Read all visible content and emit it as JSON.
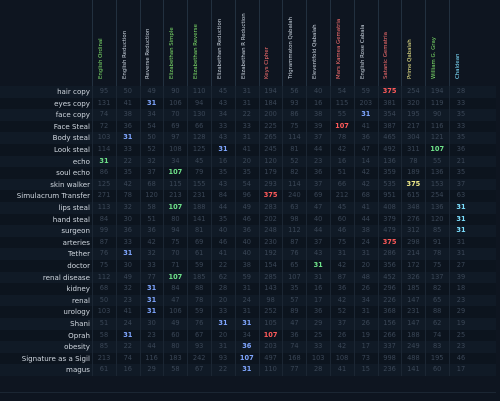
{
  "columns": [
    {
      "label": "English Ordinal",
      "color": "#7ee06a"
    },
    {
      "label": "English Reduction",
      "color": "#c9d3de"
    },
    {
      "label": "Reverse Reduction",
      "color": "#c9d3de"
    },
    {
      "label": "Elizabethan Simple",
      "color": "#7ee06a"
    },
    {
      "label": "Elizabethan Reverse",
      "color": "#7ee06a"
    },
    {
      "label": "Elizabethan Reduction",
      "color": "#c9d3de"
    },
    {
      "label": "Elizabethan R Reduction",
      "color": "#c9d3de"
    },
    {
      "label": "Keys Cipher",
      "color": "#ff7070"
    },
    {
      "label": "Trigrammaton Qabalah",
      "color": "#c9d3de"
    },
    {
      "label": "Eleventfold Qabalah",
      "color": "#c9d3de"
    },
    {
      "label": "Mars Kamea Gematria",
      "color": "#ff7070"
    },
    {
      "label": "English Rose Cabala",
      "color": "#c9d3de"
    },
    {
      "label": "Satanic Gematria",
      "color": "#ff7070"
    },
    {
      "label": "Prime Qabalah",
      "color": "#eee98a"
    },
    {
      "label": "William G. Gray",
      "color": "#7ee06a"
    },
    {
      "label": "Chaldean",
      "color": "#7de0ff"
    }
  ],
  "rows": [
    {
      "label": "hair copy",
      "values": [
        "95",
        "50",
        "49",
        "90",
        "110",
        "45",
        "31",
        "194",
        "56",
        "40",
        "54",
        "59",
        "375",
        "254",
        "194",
        "28"
      ],
      "hl": {
        "12": "r"
      }
    },
    {
      "label": "eyes copy",
      "values": [
        "131",
        "41",
        "31",
        "106",
        "94",
        "43",
        "31",
        "184",
        "93",
        "16",
        "115",
        "203",
        "381",
        "320",
        "119",
        "33"
      ],
      "hl": {
        "2": "w"
      }
    },
    {
      "label": "face copy",
      "values": [
        "74",
        "38",
        "34",
        "70",
        "130",
        "34",
        "22",
        "200",
        "86",
        "38",
        "55",
        "31",
        "354",
        "195",
        "90",
        "35"
      ],
      "hl": {
        "11": "w"
      }
    },
    {
      "label": "Face Steal",
      "values": [
        "72",
        "36",
        "54",
        "69",
        "66",
        "33",
        "33",
        "225",
        "75",
        "39",
        "107",
        "41",
        "387",
        "217",
        "116",
        "33"
      ],
      "hl": {
        "10": "r"
      }
    },
    {
      "label": "Body steal",
      "values": [
        "103",
        "31",
        "50",
        "97",
        "128",
        "43",
        "31",
        "265",
        "114",
        "37",
        "78",
        "36",
        "465",
        "304",
        "121",
        "35"
      ],
      "hl": {
        "1": "w"
      }
    },
    {
      "label": "Look steal",
      "values": [
        "114",
        "33",
        "52",
        "108",
        "125",
        "31",
        "41",
        "245",
        "81",
        "44",
        "42",
        "47",
        "492",
        "311",
        "107",
        "36"
      ],
      "hl": {
        "5": "w",
        "14": "g"
      }
    },
    {
      "label": "echo",
      "values": [
        "31",
        "22",
        "32",
        "34",
        "45",
        "16",
        "20",
        "120",
        "52",
        "23",
        "16",
        "14",
        "136",
        "78",
        "55",
        "21"
      ],
      "hl": {
        "0": "g"
      }
    },
    {
      "label": "soul echo",
      "values": [
        "86",
        "35",
        "37",
        "107",
        "79",
        "35",
        "35",
        "179",
        "82",
        "36",
        "51",
        "42",
        "359",
        "189",
        "136",
        "35"
      ],
      "hl": {
        "3": "g"
      }
    },
    {
      "label": "skin walker",
      "values": [
        "125",
        "42",
        "68",
        "115",
        "155",
        "43",
        "54",
        "293",
        "114",
        "37",
        "66",
        "42",
        "535",
        "375",
        "153",
        "37"
      ],
      "hl": {
        "13": "y"
      }
    },
    {
      "label": "Simulacrum Transfer",
      "values": [
        "271",
        "78",
        "120",
        "213",
        "231",
        "84",
        "96",
        "375",
        "240",
        "69",
        "212",
        "68",
        "951",
        "615",
        "254",
        "63"
      ],
      "hl": {
        "7": "r"
      }
    },
    {
      "label": "lips steal",
      "values": [
        "113",
        "32",
        "58",
        "107",
        "188",
        "44",
        "49",
        "283",
        "63",
        "47",
        "45",
        "41",
        "408",
        "348",
        "136",
        "31"
      ],
      "hl": {
        "3": "g",
        "15": "cy"
      }
    },
    {
      "label": "hand steal",
      "values": [
        "84",
        "30",
        "51",
        "80",
        "141",
        "35",
        "46",
        "202",
        "98",
        "40",
        "60",
        "44",
        "379",
        "276",
        "120",
        "31"
      ],
      "hl": {
        "15": "cy"
      }
    },
    {
      "label": "surgeon",
      "values": [
        "99",
        "36",
        "36",
        "94",
        "81",
        "40",
        "36",
        "248",
        "112",
        "44",
        "46",
        "38",
        "479",
        "312",
        "85",
        "31"
      ],
      "hl": {
        "15": "cy"
      }
    },
    {
      "label": "arteries",
      "values": [
        "87",
        "33",
        "42",
        "75",
        "69",
        "46",
        "40",
        "230",
        "87",
        "37",
        "75",
        "24",
        "375",
        "298",
        "91",
        "31"
      ],
      "hl": {
        "12": "r"
      }
    },
    {
      "label": "Tether",
      "values": [
        "76",
        "31",
        "32",
        "70",
        "61",
        "41",
        "40",
        "192",
        "76",
        "43",
        "31",
        "31",
        "286",
        "214",
        "78",
        "31"
      ],
      "hl": {
        "1": "w"
      }
    },
    {
      "label": "doctor",
      "values": [
        "75",
        "30",
        "33",
        "71",
        "59",
        "22",
        "38",
        "154",
        "65",
        "31",
        "42",
        "20",
        "356",
        "172",
        "75",
        "27"
      ],
      "hl": {
        "9": "g"
      }
    },
    {
      "label": "renal disease",
      "values": [
        "112",
        "49",
        "77",
        "107",
        "185",
        "62",
        "59",
        "285",
        "107",
        "31",
        "87",
        "48",
        "452",
        "326",
        "137",
        "39"
      ],
      "hl": {
        "3": "g"
      }
    },
    {
      "label": "kidney",
      "values": [
        "68",
        "32",
        "31",
        "84",
        "88",
        "28",
        "31",
        "143",
        "35",
        "16",
        "36",
        "26",
        "296",
        "185",
        "82",
        "18"
      ],
      "hl": {
        "2": "w"
      }
    },
    {
      "label": "renal",
      "values": [
        "50",
        "23",
        "31",
        "47",
        "78",
        "20",
        "24",
        "98",
        "57",
        "17",
        "42",
        "34",
        "226",
        "147",
        "65",
        "23"
      ],
      "hl": {
        "2": "w"
      }
    },
    {
      "label": "urology",
      "values": [
        "103",
        "41",
        "31",
        "106",
        "59",
        "33",
        "31",
        "252",
        "89",
        "36",
        "52",
        "31",
        "368",
        "231",
        "88",
        "29"
      ],
      "hl": {
        "2": "w"
      }
    },
    {
      "label": "Shani",
      "values": [
        "51",
        "24",
        "30",
        "49",
        "76",
        "31",
        "31",
        "105",
        "47",
        "29",
        "37",
        "26",
        "156",
        "147",
        "62",
        "19"
      ],
      "hl": {
        "5": "w",
        "6": "w"
      }
    },
    {
      "label": "Oprah",
      "values": [
        "58",
        "31",
        "23",
        "60",
        "67",
        "20",
        "34",
        "107",
        "36",
        "25",
        "26",
        "19",
        "266",
        "188",
        "74",
        "25"
      ],
      "hl": {
        "1": "w",
        "7": "r"
      }
    },
    {
      "label": "obesity",
      "values": [
        "85",
        "22",
        "44",
        "80",
        "93",
        "31",
        "36",
        "203",
        "74",
        "33",
        "42",
        "17",
        "337",
        "249",
        "83",
        "23"
      ],
      "hl": {
        "6": "w"
      }
    },
    {
      "label": "Signature as a Sigil",
      "values": [
        "213",
        "74",
        "116",
        "183",
        "242",
        "93",
        "107",
        "497",
        "168",
        "103",
        "108",
        "73",
        "998",
        "488",
        "195",
        "46"
      ],
      "hl": {
        "6": "w"
      }
    },
    {
      "label": "magus",
      "values": [
        "61",
        "16",
        "29",
        "58",
        "67",
        "22",
        "31",
        "110",
        "77",
        "28",
        "41",
        "15",
        "236",
        "141",
        "60",
        "17"
      ],
      "hl": {
        "6": "w"
      }
    }
  ]
}
